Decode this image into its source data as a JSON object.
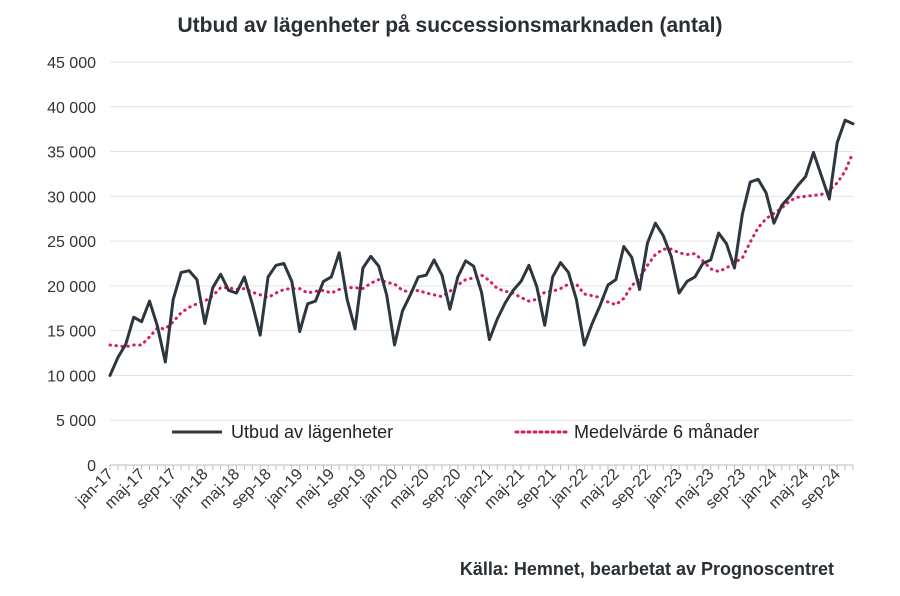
{
  "title": "Utbud av lägenheter på successionsmarknaden (antal)",
  "source": "Källa: Hemnet, bearbetat av Prognoscentret",
  "chart_data": {
    "type": "line",
    "title": "Utbud av lägenheter på successionsmarknaden (antal)",
    "xlabel": "",
    "ylabel": "",
    "ylim": [
      0,
      45000
    ],
    "y_ticks": [
      0,
      5000,
      10000,
      15000,
      20000,
      25000,
      30000,
      35000,
      40000,
      45000
    ],
    "y_tick_labels": [
      "0",
      "5 000",
      "10 000",
      "15 000",
      "20 000",
      "25 000",
      "30 000",
      "35 000",
      "40 000",
      "45 000"
    ],
    "grid": "horizontal",
    "legend_position": "inside-bottom",
    "x_tick_labels": [
      "jan-17",
      "maj-17",
      "sep-17",
      "jan-18",
      "maj-18",
      "sep-18",
      "jan-19",
      "maj-19",
      "sep-19",
      "jan-20",
      "maj-20",
      "sep-20",
      "jan-21",
      "maj-21",
      "sep-21",
      "jan-22",
      "maj-22",
      "sep-22",
      "jan-23",
      "maj-23",
      "sep-23",
      "jan-24",
      "maj-24",
      "sep-24"
    ],
    "x": [
      "jan-17",
      "feb-17",
      "mar-17",
      "apr-17",
      "maj-17",
      "jun-17",
      "jul-17",
      "aug-17",
      "sep-17",
      "okt-17",
      "nov-17",
      "dec-17",
      "jan-18",
      "feb-18",
      "mar-18",
      "apr-18",
      "maj-18",
      "jun-18",
      "jul-18",
      "aug-18",
      "sep-18",
      "okt-18",
      "nov-18",
      "dec-18",
      "jan-19",
      "feb-19",
      "mar-19",
      "apr-19",
      "maj-19",
      "jun-19",
      "jul-19",
      "aug-19",
      "sep-19",
      "okt-19",
      "nov-19",
      "dec-19",
      "jan-20",
      "feb-20",
      "mar-20",
      "apr-20",
      "maj-20",
      "jun-20",
      "jul-20",
      "aug-20",
      "sep-20",
      "okt-20",
      "nov-20",
      "dec-20",
      "jan-21",
      "feb-21",
      "mar-21",
      "apr-21",
      "maj-21",
      "jun-21",
      "jul-21",
      "aug-21",
      "sep-21",
      "okt-21",
      "nov-21",
      "dec-21",
      "jan-22",
      "feb-22",
      "mar-22",
      "apr-22",
      "maj-22",
      "jun-22",
      "jul-22",
      "aug-22",
      "sep-22",
      "okt-22",
      "nov-22",
      "dec-22",
      "jan-23",
      "feb-23",
      "mar-23",
      "apr-23",
      "maj-23",
      "jun-23",
      "jul-23",
      "aug-23",
      "sep-23",
      "okt-23",
      "nov-23",
      "dec-23",
      "jan-24",
      "feb-24",
      "mar-24",
      "apr-24",
      "maj-24",
      "jun-24",
      "jul-24",
      "aug-24",
      "sep-24",
      "okt-24",
      "nov-24"
    ],
    "series": [
      {
        "name": "Utbud av lägenheter",
        "color": "#2e3640",
        "style": "solid",
        "values": [
          10000,
          12000,
          13500,
          16500,
          16000,
          18300,
          15500,
          11500,
          18500,
          21500,
          21700,
          20700,
          15800,
          19800,
          21300,
          19500,
          19200,
          21000,
          18000,
          14500,
          21000,
          22300,
          22500,
          20500,
          14900,
          18000,
          18300,
          20500,
          21000,
          23700,
          18500,
          15200,
          22000,
          23300,
          22200,
          19000,
          13400,
          17200,
          19000,
          21000,
          21200,
          22900,
          21200,
          17400,
          21000,
          22800,
          22200,
          19300,
          14000,
          16300,
          18100,
          19500,
          20500,
          22300,
          19900,
          15600,
          21000,
          22600,
          21500,
          18500,
          13400,
          15800,
          17800,
          20100,
          20700,
          24400,
          23200,
          19600,
          24800,
          27000,
          25600,
          23300,
          19200,
          20500,
          21000,
          22500,
          22900,
          25900,
          24700,
          22000,
          28000,
          31600,
          31900,
          30400,
          27000,
          29000,
          30000,
          31200,
          32200,
          34900,
          32300,
          29700,
          36000,
          38500,
          38100
        ]
      },
      {
        "name": "Medelvärde 6 månader",
        "color": "#d81b60",
        "style": "dotted",
        "values": [
          13400,
          13300,
          13200,
          13400,
          13400,
          14300,
          15300,
          15200,
          16000,
          17000,
          17600,
          18000,
          18300,
          18900,
          19800,
          19800,
          19600,
          19700,
          19300,
          19000,
          18700,
          19200,
          19600,
          19700,
          19700,
          19200,
          19400,
          19500,
          19200,
          19600,
          19800,
          19800,
          19700,
          20300,
          20700,
          20400,
          20200,
          19500,
          19300,
          19500,
          19200,
          19000,
          18800,
          19400,
          20100,
          20700,
          20900,
          21200,
          20600,
          19700,
          19400,
          19200,
          18700,
          18300,
          18500,
          19300,
          19400,
          19700,
          20200,
          20200,
          19100,
          18900,
          18700,
          18200,
          17900,
          18600,
          20000,
          20900,
          22300,
          23500,
          24100,
          24100,
          23700,
          23500,
          23600,
          22800,
          21900,
          21600,
          22000,
          22600,
          23100,
          24900,
          26500,
          27500,
          28100,
          28700,
          29500,
          29900,
          30000,
          30100,
          30200,
          30700,
          31500,
          32800,
          34900
        ]
      }
    ]
  }
}
